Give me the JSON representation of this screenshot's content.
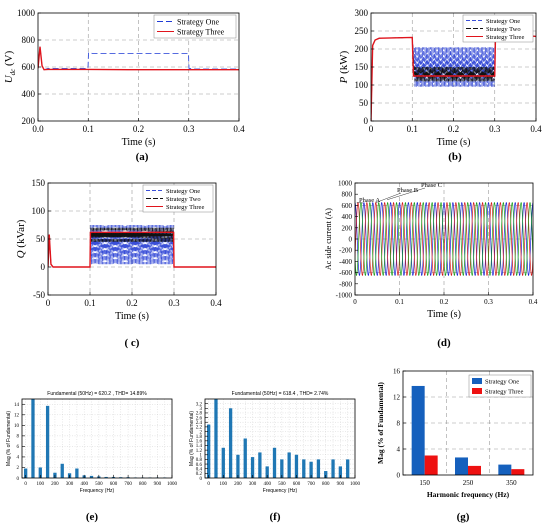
{
  "charts": [
    {
      "id": "a",
      "type": "line",
      "panel_label": "(a)",
      "xlabel": "Time (s)",
      "ylabel_main": "U",
      "ylabel_sub": "dc",
      "ylabel_unit": " (V)",
      "xlim": [
        0,
        0.4
      ],
      "ylim": [
        200,
        1000
      ],
      "xticks": [
        0,
        0.1,
        0.2,
        0.3,
        0.4
      ],
      "xtick_labels": [
        "0.0",
        "0.1",
        "0.2",
        "0.3",
        "0.4"
      ],
      "yticks": [
        200,
        400,
        600,
        800,
        1000
      ],
      "ytick_labels": [
        "200",
        "400",
        "600",
        "800",
        "1000"
      ],
      "legend_position": "top-right",
      "series": [
        {
          "name": "Strategy One",
          "color": "#1f3bd6",
          "dash": "6,3",
          "x": [
            0,
            0.004,
            0.008,
            0.012,
            0.02,
            0.05,
            0.0995,
            0.1005,
            0.11,
            0.2,
            0.29,
            0.2995,
            0.3005,
            0.31,
            0.4
          ],
          "y": [
            590,
            750,
            610,
            580,
            590,
            590,
            590,
            705,
            700,
            700,
            700,
            700,
            590,
            585,
            585
          ]
        },
        {
          "name": "Strategy Three",
          "color": "#e0141c",
          "dash": "",
          "x": [
            0,
            0.004,
            0.008,
            0.012,
            0.02,
            0.05,
            0.1,
            0.2,
            0.3,
            0.31,
            0.4
          ],
          "y": [
            590,
            750,
            610,
            580,
            582,
            582,
            582,
            580,
            580,
            580,
            580
          ]
        }
      ]
    },
    {
      "id": "b",
      "type": "line",
      "panel_label": "(b)",
      "xlabel": "Time (s)",
      "ylabel_main": "P",
      "ylabel_sub": "",
      "ylabel_unit": " (kW)",
      "xlim": [
        0,
        0.4
      ],
      "ylim": [
        0,
        300
      ],
      "xticks": [
        0,
        0.1,
        0.2,
        0.3,
        0.4
      ],
      "xtick_labels": [
        "0",
        "0.1",
        "0.2",
        "0.3",
        "0.4"
      ],
      "yticks": [
        0,
        50,
        100,
        150,
        200,
        250,
        300
      ],
      "ytick_labels": [
        "0",
        "50",
        "100",
        "150",
        "200",
        "250",
        "300"
      ],
      "legend_position": "top-right",
      "legend_series": [
        "Strategy One",
        "Strategy Two",
        "Strategy Three"
      ],
      "series": [
        {
          "name": "Strategy One",
          "color": "#3a4fd8",
          "dash": "4,2",
          "x": [
            0,
            0.004,
            0.01,
            0.02,
            0.1,
            0.105,
            0.3,
            0.302,
            0.31,
            0.4
          ],
          "y": [
            0,
            210,
            225,
            230,
            232,
            160,
            160,
            250,
            245,
            235
          ],
          "oscillation": {
            "x_start": 0.105,
            "x_end": 0.3,
            "lo": 95,
            "hi": 205,
            "cycles": 60
          }
        },
        {
          "name": "Strategy Two",
          "color": "#111111",
          "dash": "5,2",
          "x": [
            0,
            0.004,
            0.01,
            0.02,
            0.1,
            0.105,
            0.3,
            0.302,
            0.31,
            0.4
          ],
          "y": [
            0,
            210,
            225,
            230,
            232,
            130,
            130,
            250,
            245,
            235
          ],
          "oscillation": {
            "x_start": 0.105,
            "x_end": 0.3,
            "lo": 110,
            "hi": 150,
            "cycles": 60
          }
        },
        {
          "name": "Strategy Three",
          "color": "#e0141c",
          "dash": "",
          "x": [
            0,
            0.004,
            0.01,
            0.02,
            0.1,
            0.103,
            0.3,
            0.302,
            0.31,
            0.4
          ],
          "y": [
            0,
            210,
            225,
            230,
            232,
            125,
            125,
            250,
            245,
            235
          ]
        }
      ]
    },
    {
      "id": "c",
      "type": "line",
      "panel_label": "( c)",
      "xlabel": "Time (s)",
      "ylabel_main": "Q",
      "ylabel_sub": "",
      "ylabel_unit": " (kVar)",
      "xlim": [
        0,
        0.4
      ],
      "ylim": [
        -50,
        150
      ],
      "xticks": [
        0,
        0.1,
        0.2,
        0.3,
        0.4
      ],
      "xtick_labels": [
        "0",
        "0.1",
        "0.2",
        "0.3",
        "0.4"
      ],
      "yticks": [
        -50,
        0,
        50,
        100,
        150
      ],
      "ytick_labels": [
        "-50",
        "0",
        "50",
        "100",
        "150"
      ],
      "legend_position": "top-right",
      "legend_series": [
        "Strategy One",
        "Strategy Two",
        "Strategy Three"
      ],
      "series": [
        {
          "name": "Strategy One",
          "color": "#3a4fd8",
          "dash": "4,2",
          "x": [
            0,
            0.003,
            0.007,
            0.012,
            0.1,
            0.3,
            0.302,
            0.4
          ],
          "y": [
            0,
            58,
            5,
            0,
            0,
            0,
            0,
            0
          ],
          "oscillation": {
            "x_start": 0.102,
            "x_end": 0.298,
            "lo": 5,
            "hi": 75,
            "cycles": 60
          }
        },
        {
          "name": "Strategy Two",
          "color": "#111111",
          "dash": "5,2",
          "x": [
            0,
            0.003,
            0.007,
            0.012,
            0.1,
            0.3,
            0.302,
            0.4
          ],
          "y": [
            0,
            58,
            5,
            0,
            0,
            0,
            0,
            0
          ],
          "oscillation": {
            "x_start": 0.102,
            "x_end": 0.298,
            "lo": 45,
            "hi": 70,
            "cycles": 60
          }
        },
        {
          "name": "Strategy Three",
          "color": "#e0141c",
          "dash": "",
          "x": [
            0,
            0.003,
            0.007,
            0.012,
            0.1,
            0.101,
            0.299,
            0.3,
            0.4
          ],
          "y": [
            0,
            58,
            5,
            0,
            0,
            62,
            62,
            0,
            0
          ]
        }
      ]
    },
    {
      "id": "d",
      "type": "line",
      "panel_label": "(d)",
      "xlabel": "Time (s)",
      "ylabel": "Ac side current (A)",
      "xlim": [
        0,
        0.4
      ],
      "ylim": [
        -1000,
        1000
      ],
      "xticks": [
        0,
        0.1,
        0.2,
        0.3,
        0.4
      ],
      "xtick_labels": [
        "0",
        "0.1",
        "0.2",
        "0.3",
        "0.4"
      ],
      "yticks": [
        -1000,
        -800,
        -600,
        -400,
        -200,
        0,
        200,
        400,
        600,
        800,
        1000
      ],
      "ytick_labels": [
        "-1000",
        "-800",
        "-600",
        "-400",
        "-200",
        "0",
        "200",
        "400",
        "600",
        "800",
        "1000"
      ],
      "annotations": [
        "Phase A",
        "Phase B",
        "Phase C"
      ],
      "series": [
        {
          "name": "Phase A",
          "color": "#1a22d4",
          "frequency_hz": 50,
          "amplitude": 650,
          "phase_deg": 90
        },
        {
          "name": "Phase B",
          "color": "#d41a1a",
          "frequency_hz": 50,
          "amplitude": 650,
          "phase_deg": -30
        },
        {
          "name": "Phase C",
          "color": "#1a9e1a",
          "frequency_hz": 50,
          "amplitude": 650,
          "phase_deg": 210
        }
      ]
    },
    {
      "id": "e",
      "type": "bar",
      "panel_label": "(e)",
      "title": "Fundamental (50Hz) = 620.2 , THD= 14.89%",
      "xlabel": "Frequency (Hz)",
      "ylabel": "Mag (% of Fundamental)",
      "xlim": [
        -25,
        1000
      ],
      "ylim": [
        0,
        15
      ],
      "xticks": [
        0,
        100,
        200,
        300,
        400,
        500,
        600,
        700,
        800,
        900,
        1000
      ],
      "yticks": [
        0,
        2,
        4,
        6,
        8,
        10,
        12,
        14
      ],
      "x": [
        0,
        50,
        100,
        150,
        200,
        250,
        300,
        350,
        400,
        450,
        500,
        550,
        600,
        650,
        700,
        750,
        800,
        850,
        900,
        950
      ],
      "values": [
        1.8,
        15,
        2.0,
        13.7,
        1.0,
        2.7,
        0.9,
        1.8,
        0.5,
        0.4,
        0.3,
        0.2,
        0.2,
        0.15,
        0.15,
        0.1,
        0.1,
        0.1,
        0.1,
        0.1
      ],
      "color": "#1f77b4"
    },
    {
      "id": "f",
      "type": "bar",
      "panel_label": "(f)",
      "title": "Fundamental (50Hz) = 618.4 , THD= 2.74%",
      "xlabel": "Frequency (Hz)",
      "ylabel": "Mag (% of Fundamental)",
      "xlim": [
        -25,
        1000
      ],
      "ylim": [
        0,
        3.4
      ],
      "xticks": [
        0,
        100,
        200,
        300,
        400,
        500,
        600,
        700,
        800,
        900,
        1000
      ],
      "yticks": [
        0,
        0.2,
        0.4,
        0.6,
        0.8,
        1,
        1.2,
        1.4,
        1.6,
        1.8,
        2,
        2.2,
        2.4,
        2.6,
        2.8,
        3,
        3.2
      ],
      "ytick_labels": [
        "0",
        "0.2",
        "0.4",
        "0.6",
        "0.8",
        "1",
        "1.2",
        "1.4",
        "1.6",
        "1.8",
        "2",
        "2.2",
        "2.4",
        "2.6",
        "2.8",
        "3",
        "3.2"
      ],
      "x": [
        0,
        50,
        100,
        150,
        200,
        250,
        300,
        350,
        400,
        450,
        500,
        550,
        600,
        650,
        700,
        750,
        800,
        850,
        900,
        950
      ],
      "values": [
        2.3,
        3.4,
        1.3,
        3.0,
        1.0,
        1.7,
        0.9,
        1.1,
        0.5,
        1.3,
        0.8,
        1.1,
        1.0,
        0.8,
        0.7,
        0.8,
        0.3,
        0.8,
        0.5,
        0.8
      ],
      "color": "#1f77b4"
    },
    {
      "id": "g",
      "type": "bar",
      "panel_label": "(g)",
      "xlabel": "Harmonic frequency (Hz)",
      "ylabel": "Mag (% of Fundamental)",
      "categories": [
        "150",
        "250",
        "350"
      ],
      "ylim": [
        0,
        16
      ],
      "yticks": [
        0,
        4,
        8,
        12,
        16
      ],
      "legend_position": "top-right",
      "series": [
        {
          "name": "Strategy One",
          "color": "#1560bd",
          "values": [
            13.7,
            2.7,
            1.6
          ]
        },
        {
          "name": "Strategy Three",
          "color": "#ee1111",
          "values": [
            3.0,
            1.4,
            0.9
          ]
        }
      ]
    }
  ]
}
